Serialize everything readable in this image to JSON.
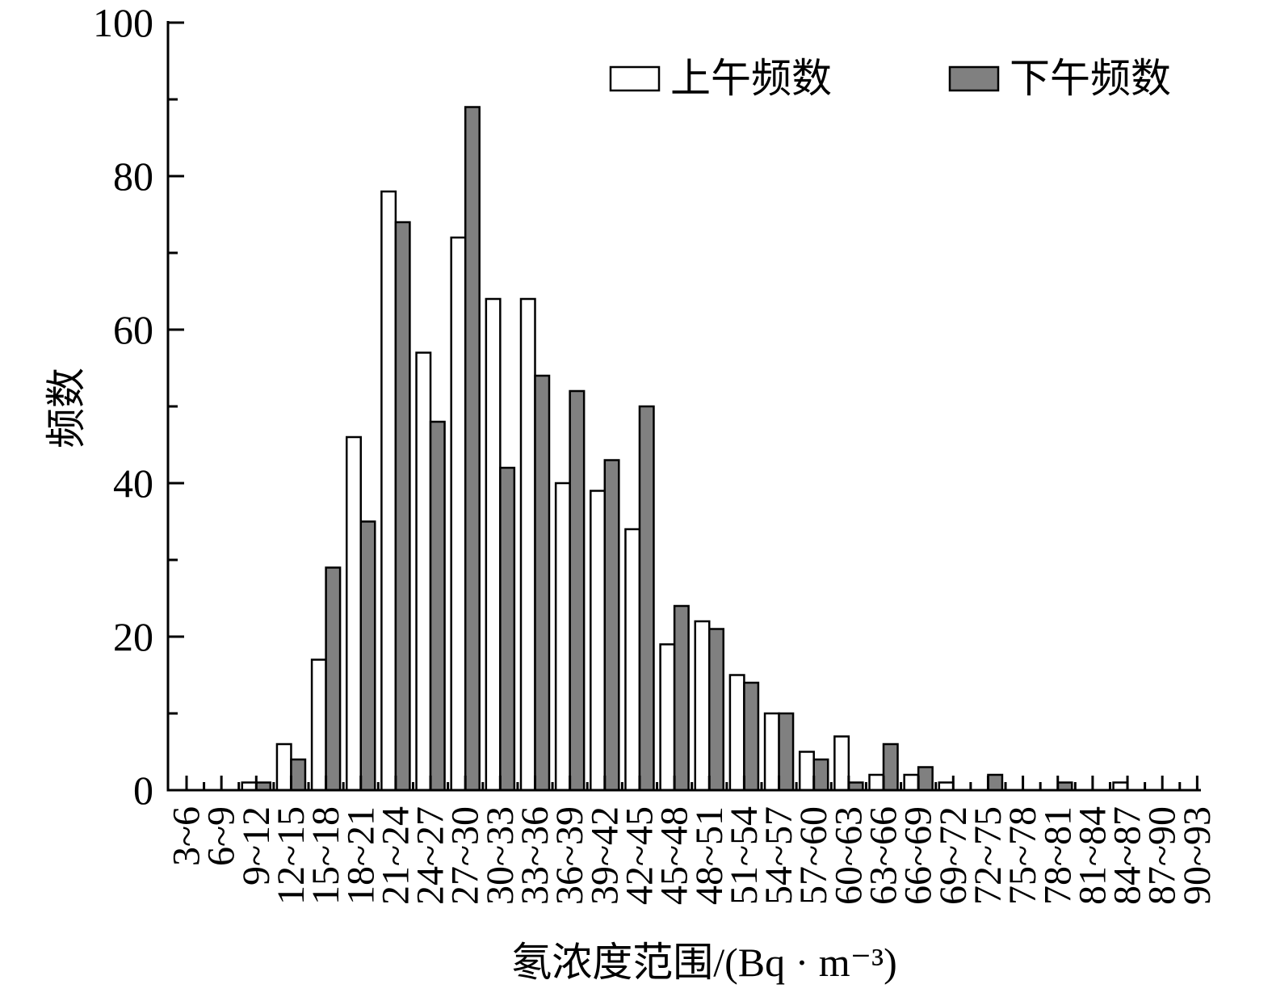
{
  "chart_data": {
    "type": "bar",
    "xlabel": "氡浓度范围/(Bq · m⁻³)",
    "ylabel": "频数",
    "ylim": [
      0,
      100
    ],
    "yticks": [
      0,
      20,
      40,
      60,
      80,
      100
    ],
    "grid": false,
    "legend_position": "top-right",
    "categories": [
      "3~6",
      "6~9",
      "9~12",
      "12~15",
      "15~18",
      "18~21",
      "21~24",
      "24~27",
      "27~30",
      "30~33",
      "33~36",
      "36~39",
      "39~42",
      "42~45",
      "45~48",
      "48~51",
      "51~54",
      "54~57",
      "57~60",
      "60~63",
      "63~66",
      "66~69",
      "69~72",
      "72~75",
      "75~78",
      "78~81",
      "81~84",
      "84~87",
      "87~90",
      "90~93"
    ],
    "series": [
      {
        "name": "上午频数",
        "color": "#ffffff",
        "values": [
          0,
          0,
          1,
          6,
          17,
          46,
          78,
          57,
          72,
          64,
          64,
          40,
          39,
          34,
          19,
          22,
          15,
          10,
          5,
          7,
          2,
          2,
          1,
          0,
          0,
          0,
          0,
          1,
          0,
          0
        ]
      },
      {
        "name": "下午频数",
        "color": "#808080",
        "values": [
          0,
          0,
          1,
          4,
          29,
          35,
          74,
          48,
          89,
          42,
          54,
          52,
          43,
          50,
          24,
          21,
          14,
          10,
          4,
          1,
          6,
          3,
          0,
          2,
          0,
          1,
          0,
          0,
          0,
          0
        ]
      }
    ]
  }
}
